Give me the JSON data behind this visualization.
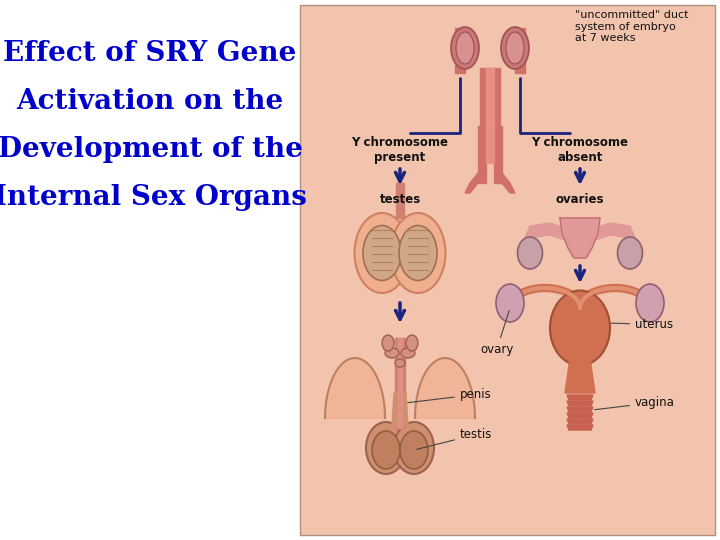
{
  "title_lines": [
    "Effect of SRY Gene",
    "Activation on the",
    "Development of the",
    "Internal Sex Organs"
  ],
  "title_color": "#0000CC",
  "title_fontsize": 20,
  "title_fontweight": "bold",
  "bg_color": "#FFFFFF",
  "diagram_bg": "#F2C4AE",
  "label_color": "#111111",
  "arrow_color": "#1a237e",
  "label_fontsize": 8.5,
  "annotation_fontsize": 8,
  "top_note": "\"uncommitted\" duct\nsystem of embryo\nat 7 weeks",
  "left_label": "Y chromosome\npresent",
  "right_label": "Y chromosome\nabsent",
  "testes_label": "testes",
  "ovaries_label": "ovaries",
  "penis_label": "penis",
  "testis_label": "testis",
  "ovary_label": "ovary",
  "uterus_label": "uterus",
  "vagina_label": "vagina",
  "skin_light": "#F0B8A0",
  "skin_mid": "#E09080",
  "skin_dark": "#C87060",
  "pink_light": "#F0C0C0",
  "pink_mid": "#E09090",
  "pink_dark": "#C87070",
  "organ_tan": "#D4956A",
  "organ_brown": "#C87050",
  "organ_pink": "#D4808A"
}
